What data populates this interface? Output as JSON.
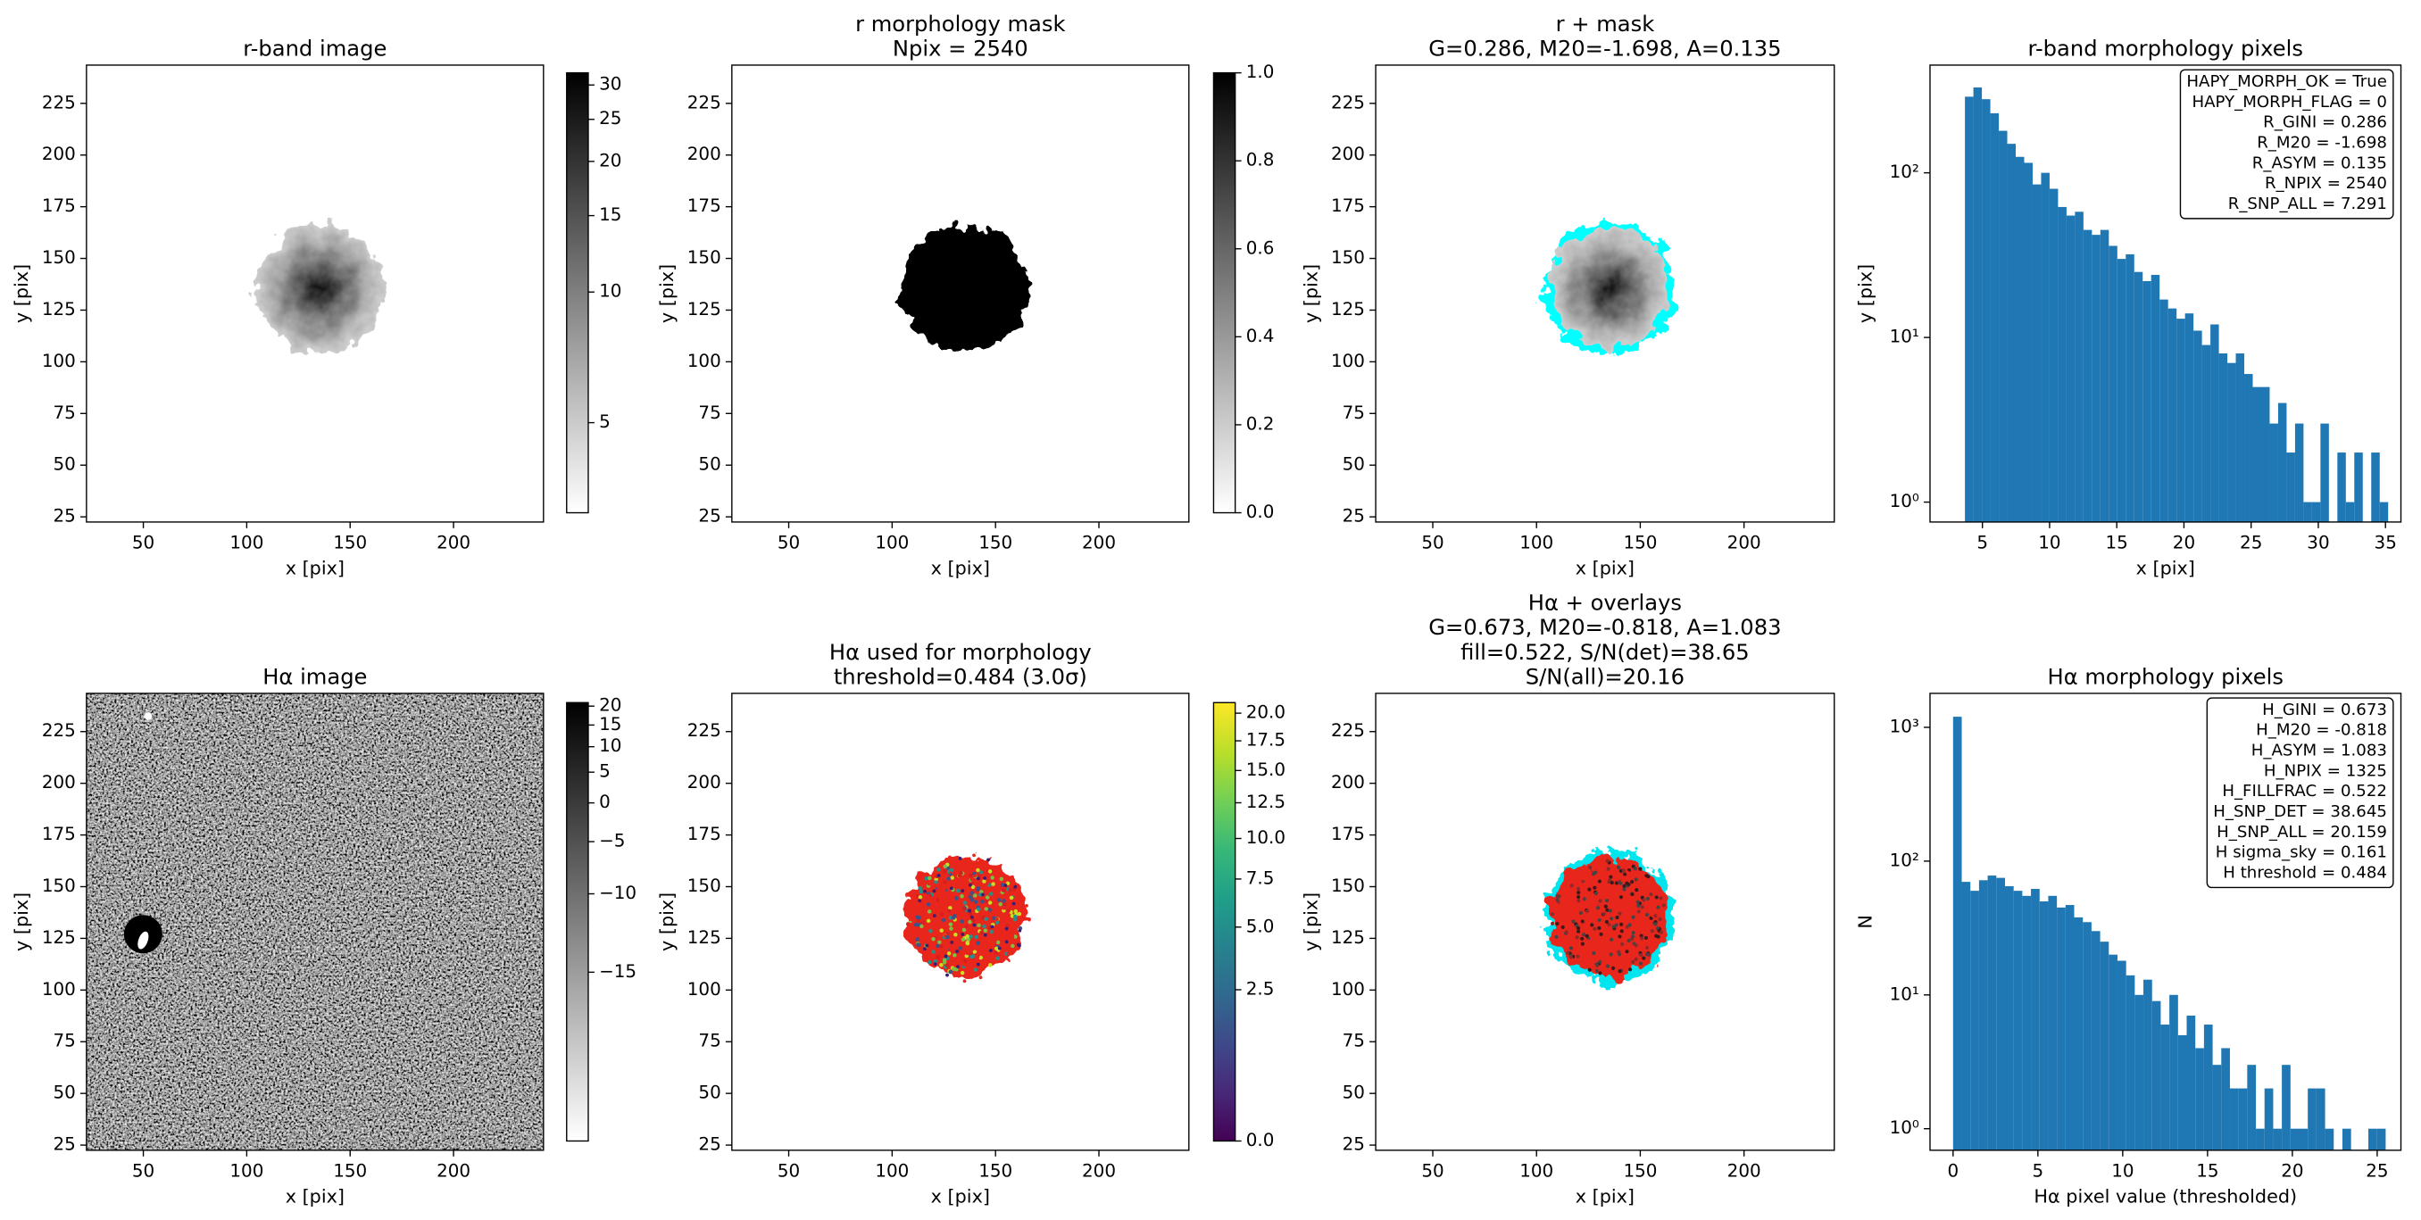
{
  "chart_data": [
    {
      "type": "image",
      "title": [
        "r-band image"
      ],
      "xlabel": "x [pix]",
      "ylabel": "y [pix]",
      "xlim": [
        22.5,
        243.5
      ],
      "ylim": [
        22.5,
        243.5
      ],
      "xticks": [
        50,
        100,
        150,
        200
      ],
      "yticks": [
        25,
        50,
        75,
        100,
        125,
        150,
        175,
        200,
        225
      ],
      "colorbar": {
        "cmap": "gray_r",
        "scale": "log",
        "clim": [
          3.1,
          32
        ],
        "ticks": [
          5,
          10,
          15,
          20,
          25,
          30
        ]
      }
    },
    {
      "type": "image",
      "title": [
        "r morphology mask",
        "Npix = 2540"
      ],
      "xlabel": "x [pix]",
      "ylabel": "y [pix]",
      "xlim": [
        22.5,
        243.5
      ],
      "ylim": [
        22.5,
        243.5
      ],
      "xticks": [
        50,
        100,
        150,
        200
      ],
      "yticks": [
        25,
        50,
        75,
        100,
        125,
        150,
        175,
        200,
        225
      ],
      "colorbar": {
        "cmap": "gray_r",
        "scale": "linear",
        "clim": [
          0,
          1
        ],
        "ticks": [
          {
            "value": 0,
            "label": "0.0"
          },
          0.2,
          0.4,
          0.6,
          0.8,
          {
            "value": 1,
            "label": "1.0"
          }
        ]
      }
    },
    {
      "type": "image",
      "title": [
        "r + mask",
        "G=0.286, M20=-1.698, A=0.135"
      ],
      "xlabel": "x [pix]",
      "ylabel": "y [pix]",
      "xlim": [
        22.5,
        243.5
      ],
      "ylim": [
        22.5,
        243.5
      ],
      "xticks": [
        50,
        100,
        150,
        200
      ],
      "yticks": [
        25,
        50,
        75,
        100,
        125,
        150,
        175,
        200,
        225
      ]
    },
    {
      "type": "histogram",
      "title": [
        "r-band morphology pixels"
      ],
      "xlabel": "x [pix]",
      "ylabel": "y [pix]",
      "color": "#1f77b4",
      "log_y": true,
      "bins": [
        3.7,
        4.33,
        4.96,
        5.59,
        6.22,
        6.85,
        7.48,
        8.11,
        8.74,
        9.37,
        10.0,
        10.63,
        11.26,
        11.89,
        12.52,
        13.15,
        13.78,
        14.41,
        15.04,
        15.67,
        16.3,
        16.93,
        17.56,
        18.19,
        18.82,
        19.45,
        20.08,
        20.71,
        21.34,
        21.97,
        22.6,
        23.23,
        23.86,
        24.49,
        25.12,
        25.75,
        26.38,
        27.01,
        27.64,
        28.27,
        28.9,
        29.53,
        30.16,
        30.79,
        31.42,
        32.05,
        32.68,
        33.31,
        33.94,
        34.57,
        35.2
      ],
      "counts": [
        290,
        330,
        280,
        230,
        180,
        150,
        125,
        115,
        85,
        100,
        80,
        62,
        55,
        58,
        45,
        42,
        45,
        36,
        30,
        32,
        25,
        22,
        24,
        17,
        15,
        13,
        14,
        11,
        9,
        12,
        8,
        7,
        8,
        6,
        5,
        5,
        3,
        4,
        2,
        3,
        1,
        1,
        3,
        0,
        2,
        1,
        2,
        0,
        2,
        1
      ],
      "xlim": [
        1.1,
        36.15
      ],
      "ylim": [
        0.757,
        451
      ],
      "xticks": [
        5,
        10,
        15,
        20,
        25,
        30,
        35
      ],
      "yticks": [
        {
          "value": 1,
          "label": "10⁰"
        },
        {
          "value": 10,
          "label": "10¹"
        },
        {
          "value": 100,
          "label": "10²"
        }
      ],
      "annotation_loc": "upper right",
      "annotations": [
        "HAPY_MORPH_OK = True",
        "HAPY_MORPH_FLAG = 0",
        "R_GINI = 0.286",
        "R_M20 = -1.698",
        "R_ASYM = 0.135",
        "R_NPIX = 2540",
        "R_SNP_ALL = 7.291"
      ]
    },
    {
      "type": "image",
      "title": [
        "Hα image"
      ],
      "xlabel": "x [pix]",
      "ylabel": "y [pix]",
      "xlim": [
        22.5,
        243.5
      ],
      "ylim": [
        22.5,
        243.5
      ],
      "xticks": [
        50,
        100,
        150,
        200
      ],
      "yticks": [
        25,
        50,
        75,
        100,
        125,
        150,
        175,
        200,
        225
      ],
      "colorbar": {
        "cmap": "gray_r",
        "scale": "asinh",
        "clim": [
          -21,
          21
        ],
        "ticks": [
          {
            "value": -15,
            "label": "−15"
          },
          {
            "value": -10,
            "label": "−10"
          },
          {
            "value": -5,
            "label": "−5"
          },
          0,
          5,
          10,
          15,
          20
        ]
      }
    },
    {
      "type": "image",
      "title": [
        "Hα used for morphology",
        "threshold=0.484 (3.0σ)"
      ],
      "xlabel": "x [pix]",
      "ylabel": "y [pix]",
      "xlim": [
        22.5,
        243.5
      ],
      "ylim": [
        22.5,
        243.5
      ],
      "xticks": [
        50,
        100,
        150,
        200
      ],
      "yticks": [
        25,
        50,
        75,
        100,
        125,
        150,
        175,
        200,
        225
      ],
      "colorbar": {
        "cmap": "viridis",
        "scale": "sqrt",
        "clim": [
          0,
          21
        ],
        "ticks": [
          {
            "value": 0,
            "label": "0.0"
          },
          2.5,
          {
            "value": 5,
            "label": "5.0"
          },
          7.5,
          {
            "value": 10,
            "label": "10.0"
          },
          12.5,
          {
            "value": 15,
            "label": "15.0"
          },
          17.5,
          {
            "value": 20,
            "label": "20.0"
          }
        ]
      }
    },
    {
      "type": "image",
      "title": [
        "Hα + overlays",
        "G=0.673, M20=-0.818, A=1.083",
        "fill=0.522, S/N(det)=38.65",
        "S/N(all)=20.16"
      ],
      "xlabel": "x [pix]",
      "ylabel": "y [pix]",
      "xlim": [
        22.5,
        243.5
      ],
      "ylim": [
        22.5,
        243.5
      ],
      "xticks": [
        50,
        100,
        150,
        200
      ],
      "yticks": [
        25,
        50,
        75,
        100,
        125,
        150,
        175,
        200,
        225
      ]
    },
    {
      "type": "histogram",
      "title": [
        "Hα morphology pixels"
      ],
      "xlabel": "Hα pixel value (thresholded)",
      "ylabel": "N",
      "color": "#1f77b4",
      "log_y": true,
      "bins": [
        0,
        0.51,
        1.02,
        1.53,
        2.04,
        2.55,
        3.06,
        3.57,
        4.08,
        4.59,
        5.1,
        5.61,
        6.12,
        6.63,
        7.14,
        7.65,
        8.16,
        8.67,
        9.18,
        9.69,
        10.2,
        10.71,
        11.22,
        11.73,
        12.24,
        12.75,
        13.26,
        13.77,
        14.28,
        14.79,
        15.3,
        15.81,
        16.32,
        16.83,
        17.34,
        17.85,
        18.36,
        18.87,
        19.38,
        19.89,
        20.4,
        20.91,
        21.42,
        21.93,
        22.44,
        22.95,
        23.46,
        23.97,
        24.48,
        24.99,
        25.5
      ],
      "counts": [
        1200,
        70,
        60,
        72,
        78,
        75,
        65,
        60,
        55,
        62,
        50,
        55,
        45,
        47,
        38,
        35,
        30,
        25,
        20,
        18,
        14,
        10,
        13,
        9,
        6,
        10,
        5,
        7,
        4,
        6,
        3,
        4,
        2,
        2,
        3,
        1,
        2,
        1,
        3,
        1,
        1,
        2,
        2,
        1,
        0,
        1,
        0,
        0,
        1,
        1
      ],
      "xlim": [
        -1.36,
        26.4
      ],
      "ylim": [
        0.69,
        1795
      ],
      "xticks": [
        0,
        5,
        10,
        15,
        20,
        25
      ],
      "yticks": [
        {
          "value": 1,
          "label": "10⁰"
        },
        {
          "value": 10,
          "label": "10¹"
        },
        {
          "value": 100,
          "label": "10²"
        },
        {
          "value": 1000,
          "label": "10³"
        }
      ],
      "annotation_loc": "upper right",
      "annotations": [
        "H_GINI = 0.673",
        "H_M20 = -0.818",
        "H_ASYM = 1.083",
        "H_NPIX = 1325",
        "H_FILLFRAC = 0.522",
        "H_SNP_DET = 38.645",
        "H_SNP_ALL = 20.159",
        "H sigma_sky = 0.161",
        "H threshold = 0.484"
      ]
    }
  ]
}
